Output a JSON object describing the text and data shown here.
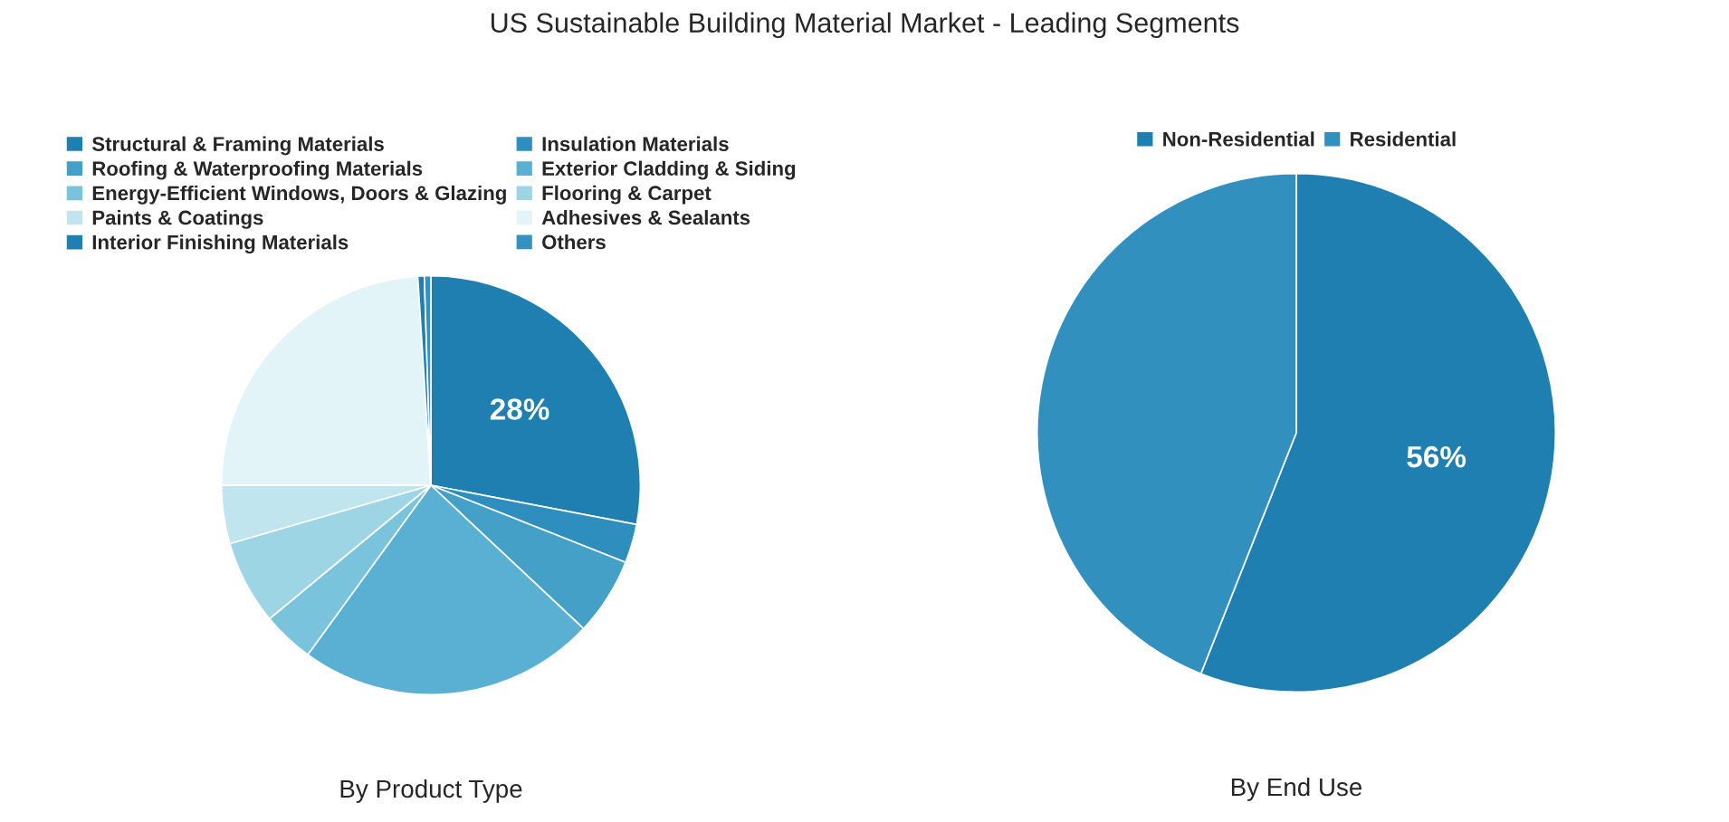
{
  "chart_data": [
    {
      "type": "pie",
      "title": "US Sustainable Building Material Market - Leading Segments",
      "xlabel": "By Product Type",
      "legend": "top",
      "categories": [
        "Structural & Framing Materials",
        "Insulation Materials",
        "Roofing & Waterproofing Materials",
        "Exterior Cladding & Siding",
        "Energy-Efficient Windows, Doors & Glazing",
        "Flooring & Carpet",
        "Paints & Coatings",
        "Adhesives & Sealants",
        "Interior Finishing Materials",
        "Others"
      ],
      "values": [
        28,
        3,
        6,
        23,
        4,
        6.5,
        4.5,
        24,
        0.5,
        0.5
      ],
      "value_labels": [
        "28%",
        null,
        null,
        null,
        null,
        null,
        null,
        null,
        null,
        null
      ],
      "colors": [
        "#1f7fb0",
        "#2e8fbe",
        "#45a0c8",
        "#5ab0d2",
        "#79c3dd",
        "#9dd5e5",
        "#c0e5ee",
        "#e3f4f8",
        "#1f7fb0",
        "#3592c0"
      ]
    },
    {
      "type": "pie",
      "xlabel": "By End Use",
      "legend": "top",
      "categories": [
        "Non-Residential",
        "Residential"
      ],
      "values": [
        56,
        44
      ],
      "value_labels": [
        "56%",
        null
      ],
      "colors": [
        "#1f7fb0",
        "#3190bd"
      ]
    }
  ]
}
